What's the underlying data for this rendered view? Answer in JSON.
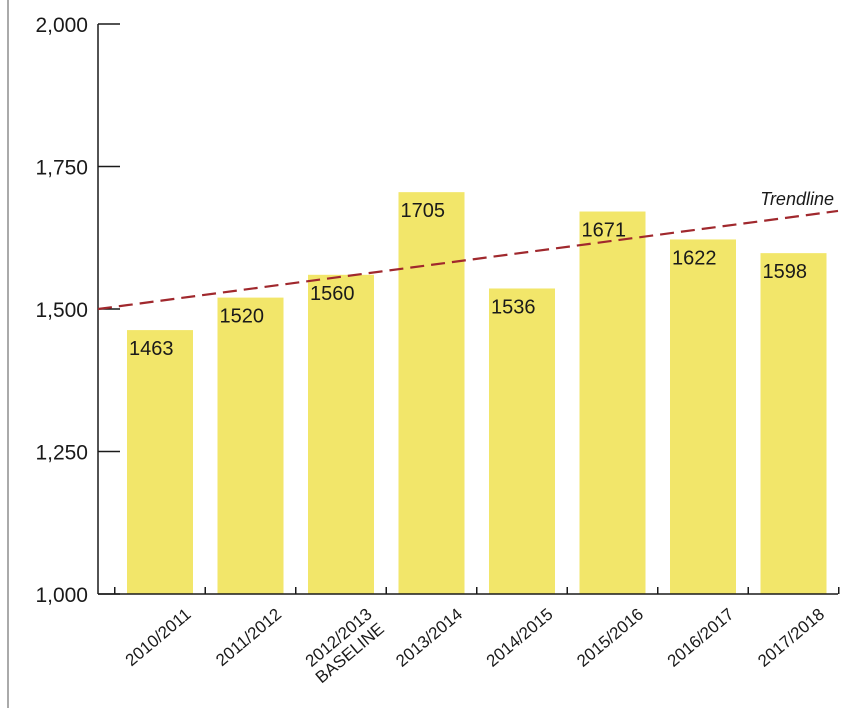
{
  "chart_data": {
    "type": "bar",
    "categories": [
      [
        "2010/2011"
      ],
      [
        "2011/2012"
      ],
      [
        "2012/2013",
        "BASELINE"
      ],
      [
        "2013/2014"
      ],
      [
        "2014/2015"
      ],
      [
        "2015/2016"
      ],
      [
        "2016/2017"
      ],
      [
        "2017/2018"
      ]
    ],
    "values": [
      1463,
      1520,
      1560,
      1705,
      1536,
      1671,
      1622,
      1598
    ],
    "data_labels": [
      "1463",
      "1520",
      "1560",
      "1705",
      "1536",
      "1671",
      "1622",
      "1598"
    ],
    "ylim": [
      1000,
      2000
    ],
    "yticks": [
      1000,
      1250,
      1500,
      1750,
      2000
    ],
    "ytick_labels": [
      "1,000",
      "1,250",
      "1,500",
      "1,750",
      "2,000"
    ],
    "grid": false,
    "bar_color": "#f2e66a",
    "trendline": {
      "label": "Trendline",
      "color": "#a0282d",
      "style": "dashed",
      "start_value": 1500,
      "end_value": 1672
    }
  }
}
